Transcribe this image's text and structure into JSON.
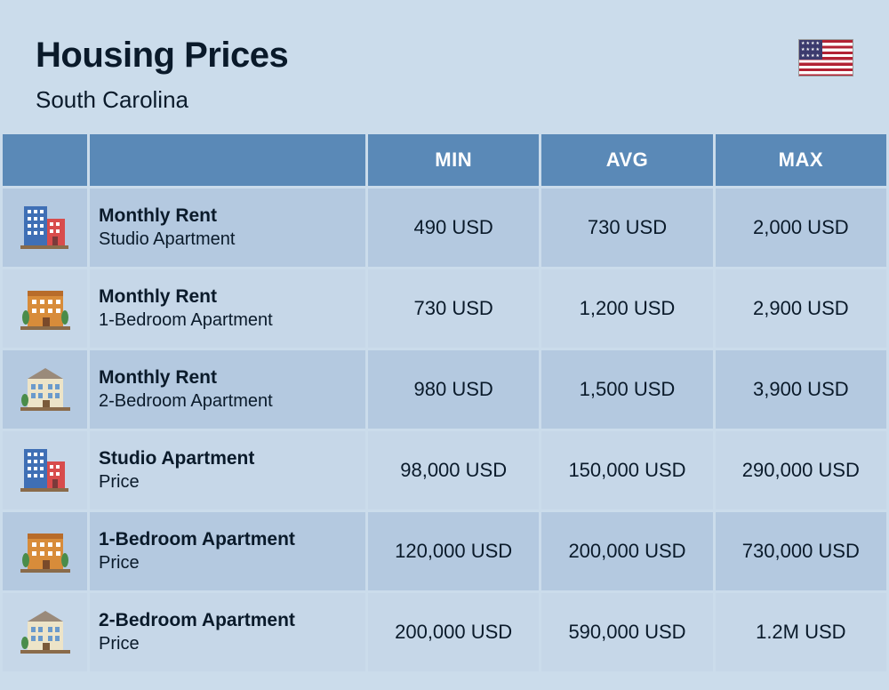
{
  "header": {
    "title": "Housing Prices",
    "subtitle": "South Carolina"
  },
  "table": {
    "columns": [
      "MIN",
      "AVG",
      "MAX"
    ],
    "row_bg_even": "#b4c9e0",
    "row_bg_odd": "#c6d7e8",
    "header_bg": "#5a89b7",
    "header_color": "#ffffff",
    "text_color": "#0a1a2a",
    "rows": [
      {
        "icon": "buildings-a",
        "title": "Monthly Rent",
        "sub": "Studio Apartment",
        "min": "490 USD",
        "avg": "730 USD",
        "max": "2,000 USD"
      },
      {
        "icon": "buildings-b",
        "title": "Monthly Rent",
        "sub": "1-Bedroom Apartment",
        "min": "730 USD",
        "avg": "1,200 USD",
        "max": "2,900 USD"
      },
      {
        "icon": "buildings-c",
        "title": "Monthly Rent",
        "sub": "2-Bedroom Apartment",
        "min": "980 USD",
        "avg": "1,500 USD",
        "max": "3,900 USD"
      },
      {
        "icon": "buildings-a",
        "title": "Studio Apartment",
        "sub": "Price",
        "min": "98,000 USD",
        "avg": "150,000 USD",
        "max": "290,000 USD"
      },
      {
        "icon": "buildings-b",
        "title": "1-Bedroom Apartment",
        "sub": "Price",
        "min": "120,000 USD",
        "avg": "200,000 USD",
        "max": "730,000 USD"
      },
      {
        "icon": "buildings-c",
        "title": "2-Bedroom Apartment",
        "sub": "Price",
        "min": "200,000 USD",
        "avg": "590,000 USD",
        "max": "1.2M USD"
      }
    ]
  },
  "colors": {
    "page_bg": "#cbdceb"
  }
}
